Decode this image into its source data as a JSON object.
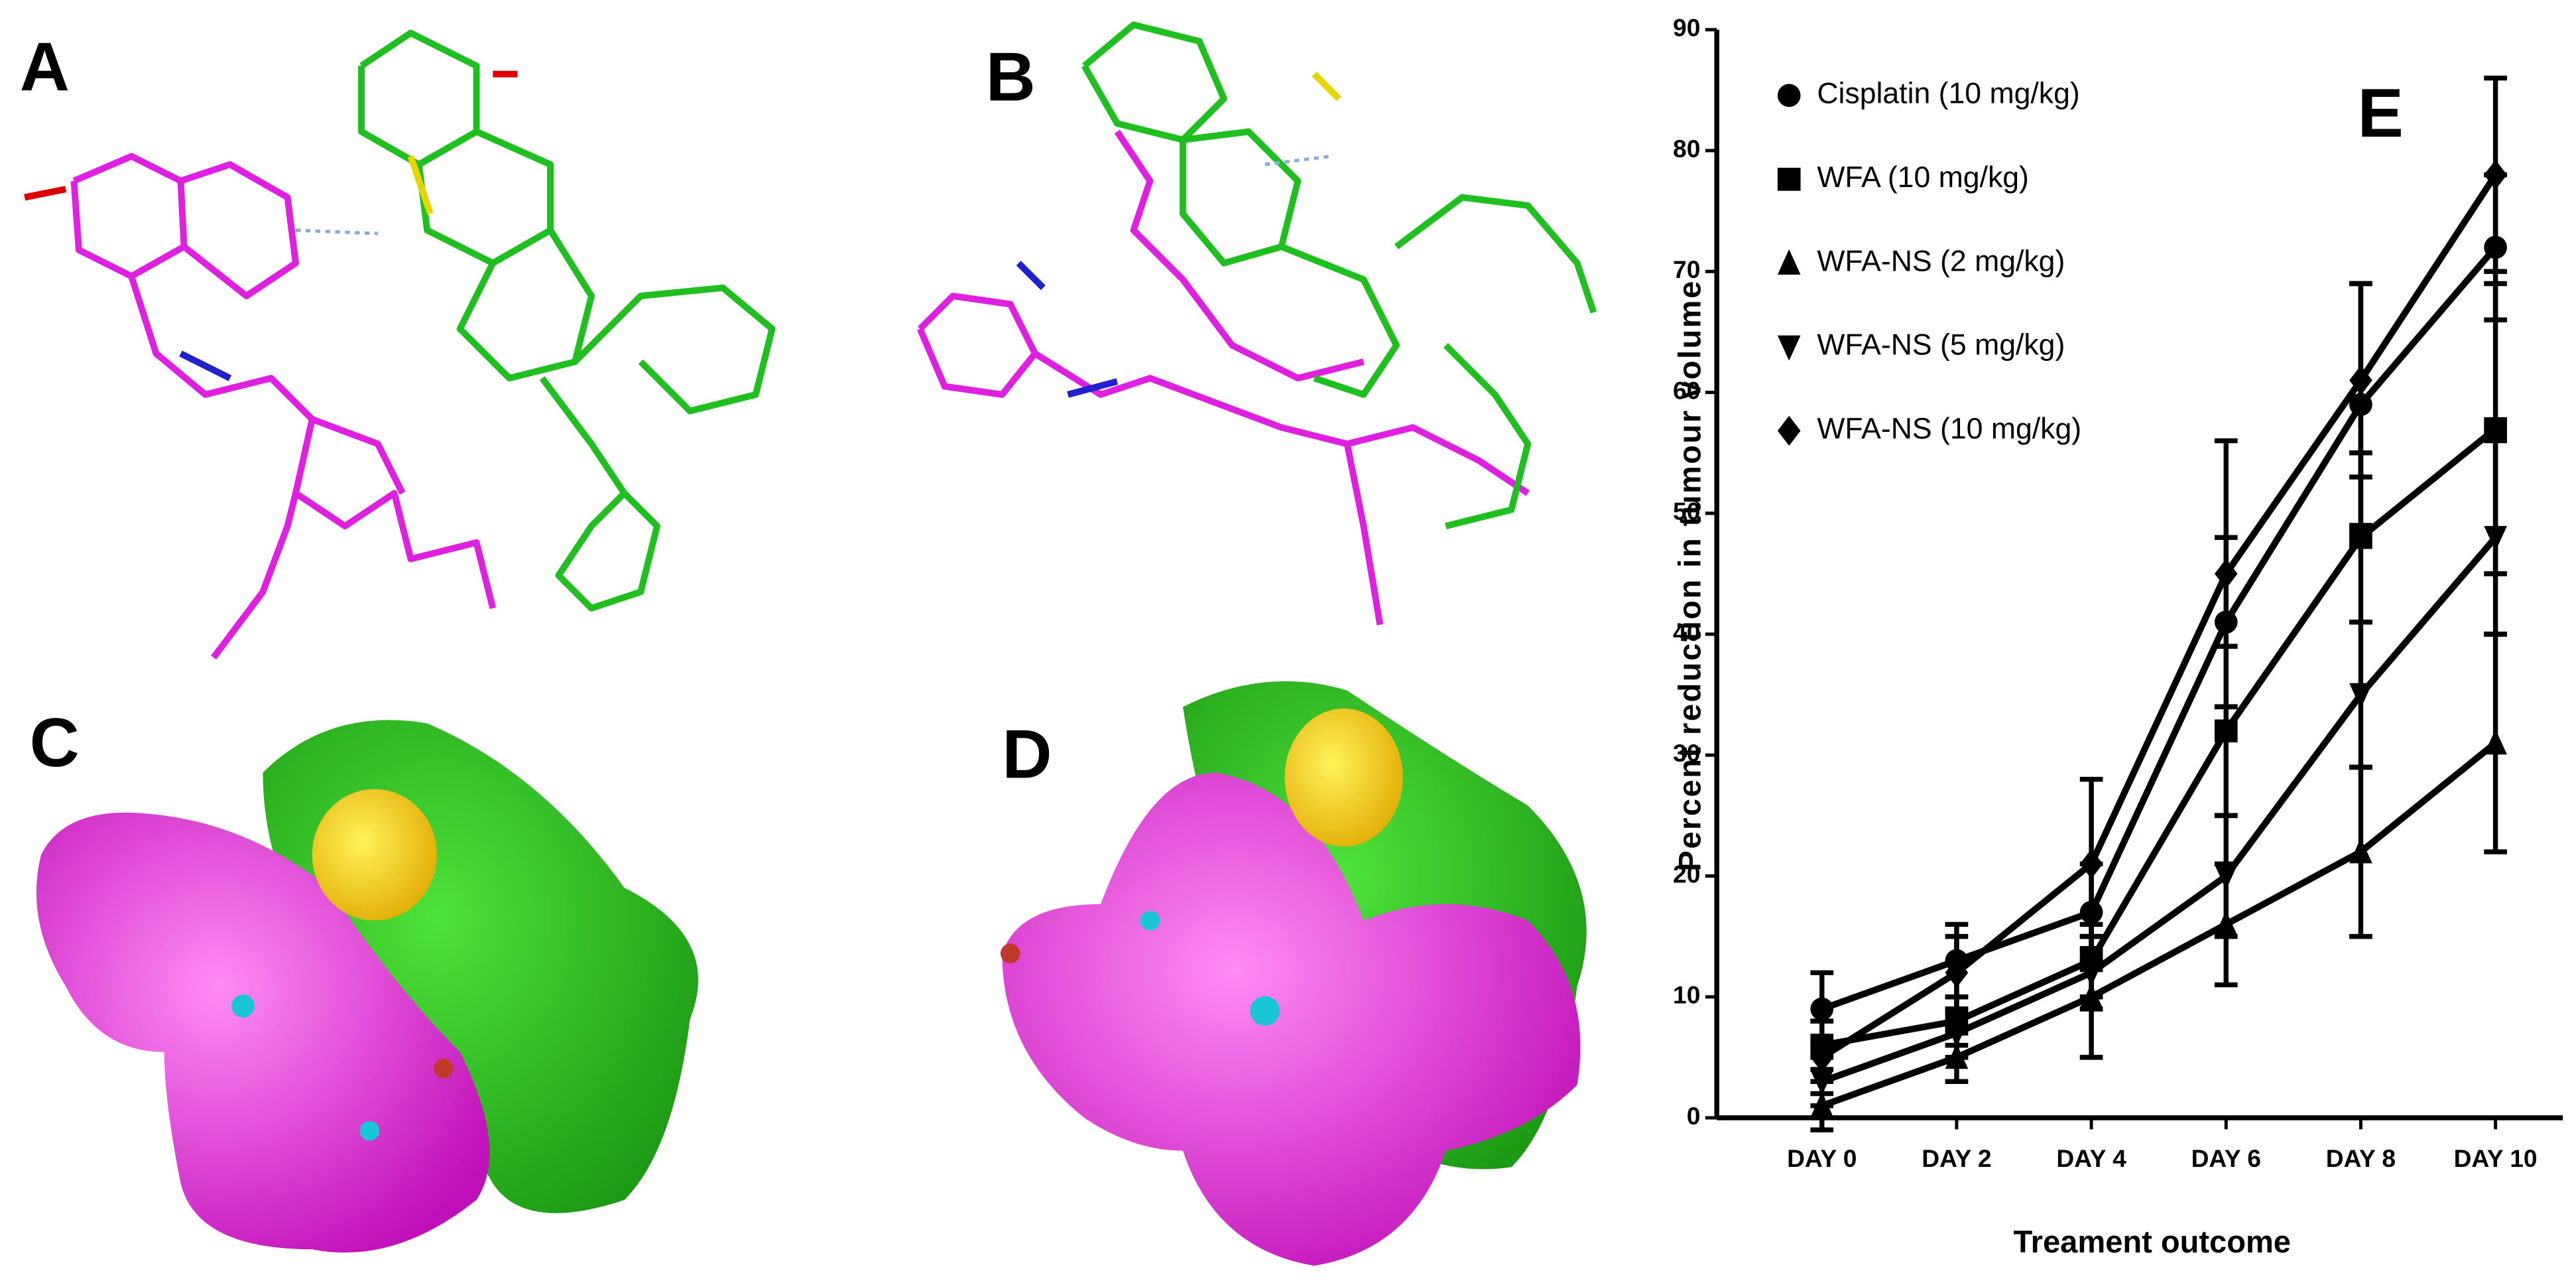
{
  "panels": [
    "A",
    "B",
    "C",
    "D"
  ],
  "chart_data": {
    "type": "line",
    "panel_label": "E",
    "x_label": "Treament outcome",
    "y_label": "Percent reduction in tumour volume",
    "categories": [
      "DAY 0",
      "DAY 2",
      "DAY 4",
      "DAY 6",
      "DAY 8",
      "DAY 10"
    ],
    "ylim": [
      0,
      90
    ],
    "yticks": [
      0,
      10,
      20,
      30,
      40,
      50,
      60,
      70,
      80,
      90
    ],
    "series": [
      {
        "name": "Cisplatin (10 mg/kg)",
        "marker": "circle",
        "color": "#000000",
        "values": [
          9,
          13,
          17,
          41,
          59,
          72
        ],
        "errors": [
          3,
          3,
          4,
          7,
          10,
          6
        ]
      },
      {
        "name": "WFA (10 mg/kg)",
        "marker": "square",
        "color": "#000000",
        "values": [
          6,
          8,
          13,
          32,
          48,
          57
        ],
        "errors": [
          2,
          2,
          3,
          7,
          7,
          12
        ]
      },
      {
        "name": "WFA-NS (2 mg/kg)",
        "marker": "triangle-up",
        "color": "#000000",
        "values": [
          1,
          5,
          10,
          16,
          22,
          31
        ],
        "errors": [
          2,
          2,
          5,
          5,
          7,
          9
        ]
      },
      {
        "name": "WFA-NS (5 mg/kg)",
        "marker": "triangle-down",
        "color": "#000000",
        "values": [
          3,
          7,
          12,
          20,
          35,
          48
        ],
        "errors": [
          2,
          2,
          3,
          5,
          6,
          8
        ]
      },
      {
        "name": "WFA-NS (10 mg/kg)",
        "marker": "diamond",
        "color": "#000000",
        "values": [
          5,
          12,
          21,
          45,
          61,
          78
        ],
        "errors": [
          3,
          3,
          7,
          11,
          8,
          8
        ]
      }
    ]
  }
}
